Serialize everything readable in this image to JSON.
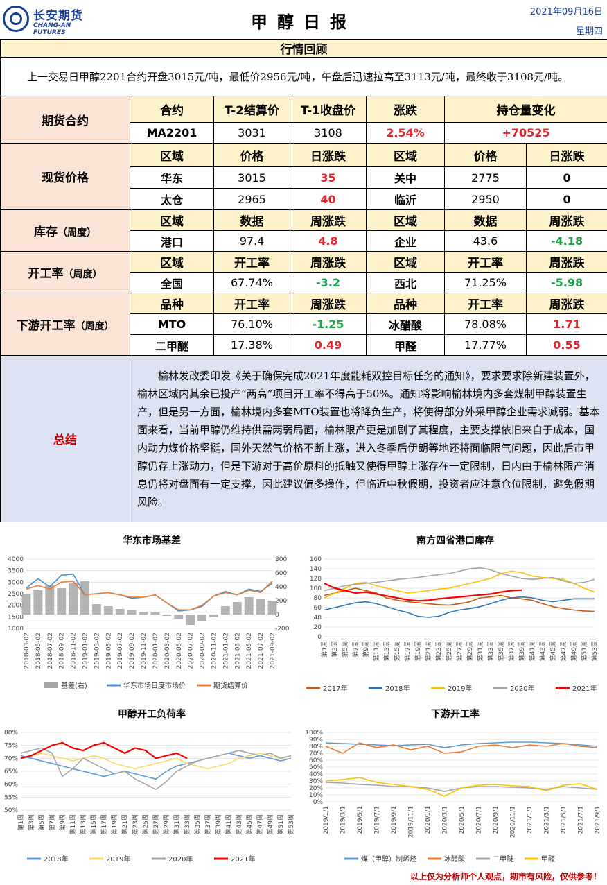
{
  "header": {
    "logo_cn": "长安期货",
    "logo_en": "CHANG-AN FUTURES",
    "title": "甲醇日报",
    "date": "2021年09月16日",
    "weekday": "星期四"
  },
  "review": {
    "heading": "行情回顾",
    "text": "上一交易日甲醇2201合约开盘3015元/吨，最低价2956元/吨，午盘后迅速拉高至3113元/吨，最终收于3108元/吨。"
  },
  "futures": {
    "label": "期货合约",
    "headers": [
      "合约",
      "T-2结算价",
      "T-1收盘价",
      "涨跌",
      "持仓量变化"
    ],
    "row": [
      "MA2201",
      "3031",
      "3108",
      "2.54%",
      "+70525"
    ]
  },
  "spot": {
    "label": "现货价格",
    "headers": [
      "区域",
      "价格",
      "日涨跌",
      "区域",
      "价格",
      "日涨跌"
    ],
    "rows": [
      [
        "华东",
        "3015",
        "35",
        "关中",
        "2775",
        "0"
      ],
      [
        "太仓",
        "2965",
        "40",
        "临沂",
        "2950",
        "0"
      ]
    ]
  },
  "inventory": {
    "label": "库存",
    "sub": "（周度）",
    "headers": [
      "区域",
      "数据",
      "周涨跌",
      "区域",
      "数据",
      "周涨跌"
    ],
    "row": [
      "港口",
      "97.4",
      "4.8",
      "企业",
      "43.6",
      "-4.18"
    ]
  },
  "operating": {
    "label": "开工率",
    "sub": "（周度）",
    "headers": [
      "区域",
      "开工率",
      "周涨跌",
      "区域",
      "开工率",
      "周涨跌"
    ],
    "row": [
      "全国",
      "67.74%",
      "-3.2",
      "西北",
      "71.25%",
      "-5.98"
    ]
  },
  "downstream": {
    "label": "下游开工率",
    "sub": "（周度）",
    "headers": [
      "品种",
      "开工率",
      "周涨跌",
      "品种",
      "开工率",
      "周涨跌"
    ],
    "rows": [
      [
        "MTO",
        "76.10%",
        "-1.25",
        "冰醋酸",
        "78.08%",
        "1.71"
      ],
      [
        "二甲醚",
        "17.38%",
        "0.49",
        "甲醛",
        "17.77%",
        "0.55"
      ]
    ]
  },
  "summary": {
    "label": "总结",
    "text": "榆林发改委印发《关于确保完成2021年度能耗双控目标任务的通知》，要求要求除新建装置外，榆林区域内其余已投产“两高”项目开工率不得高于50%。通知将影响榆林境内多套煤制甲醇装置生产，但是另一方面，榆林境内多套MTO装置也将降负生产，将使得部分外采甲醇企业需求减弱。基本面来看，当前甲醇仍维持供需两弱局面，榆林限产更是加剧了其程度，主要支撑依旧来自于成本，国内动力煤价格坚挺，国外天然气价格不断上涨，进入冬季后伊朗等地还将面临限气问题，因此后市甲醇仍存上涨动力，但是下游对于高价原料的抵触又使得甲醇上涨存在一定限制，日内由于榆林限产消息仍将对盘面有一定支撑，因此建议偏多操作，但临近中秋假期，投资者应注意仓位限制，避免假期风险。"
  },
  "chart_data": [
    {
      "type": "line",
      "title": "华东市场基差",
      "x": [
        "2018-03-02",
        "2018-05-02",
        "2018-07-02",
        "2018-09-02",
        "2018-11-02",
        "2019-01-02",
        "2019-03-02",
        "2019-05-02",
        "2019-07-02",
        "2019-09-02",
        "2019-11-02",
        "2020-01-02",
        "2020-03-02",
        "2020-05-02",
        "2020-07-02",
        "2020-09-02",
        "2020-11-02",
        "2021-01-02",
        "2021-03-02",
        "2021-05-02",
        "2021-07-02",
        "2021-09-02"
      ],
      "ylim": [
        1000,
        4000
      ],
      "y2lim": [
        -200,
        800
      ],
      "yticks": [
        "4000",
        "3500",
        "3000",
        "2500",
        "2000",
        "1500",
        "1000"
      ],
      "y2ticks": [
        "800",
        "600",
        "400",
        "200",
        "0",
        "-200"
      ],
      "series": [
        {
          "name": "基差(右)",
          "color": "#a6a6a6",
          "axis": "right",
          "values": [
            300,
            350,
            420,
            380,
            450,
            480,
            150,
            120,
            80,
            60,
            40,
            30,
            -20,
            -60,
            -150,
            -100,
            -40,
            120,
            180,
            250,
            220,
            200
          ]
        },
        {
          "name": "华东市场日度市场价",
          "color": "#4a8fd0",
          "values": [
            2750,
            3150,
            2800,
            3300,
            3350,
            2450,
            2500,
            2550,
            2450,
            2300,
            2350,
            2450,
            2100,
            1750,
            1800,
            1950,
            2400,
            2600,
            2450,
            2700,
            2600,
            2950
          ]
        },
        {
          "name": "期货结算价",
          "color": "#ed7d31",
          "values": [
            2700,
            2850,
            2700,
            3000,
            3050,
            2450,
            2500,
            2550,
            2450,
            2350,
            2350,
            2450,
            2100,
            1800,
            1800,
            2000,
            2400,
            2550,
            2450,
            2650,
            2550,
            3050
          ]
        }
      ]
    },
    {
      "type": "line",
      "title": "南方四省港口库存",
      "x": [
        "第1周",
        "第3周",
        "第5周",
        "第7周",
        "第9周",
        "第11周",
        "第13周",
        "第15周",
        "第17周",
        "第19周",
        "第21周",
        "第23周",
        "第25周",
        "第27周",
        "第29周",
        "第31周",
        "第33周",
        "第35周",
        "第37周",
        "第39周",
        "第41周",
        "第43周",
        "第45周",
        "第47周",
        "第49周",
        "第51周",
        "第53周"
      ],
      "ylim": [
        0,
        160
      ],
      "yticks": [
        "160",
        "140",
        "120",
        "100",
        "80",
        "60",
        "40",
        "20",
        "0"
      ],
      "series": [
        {
          "name": "2017年",
          "color": "#c55a11",
          "values": [
            85,
            90,
            95,
            100,
            95,
            90,
            80,
            75,
            72,
            70,
            68,
            66,
            65,
            68,
            72,
            80,
            82,
            85,
            80,
            78,
            75,
            68,
            62,
            58,
            55,
            53,
            52
          ]
        },
        {
          "name": "2018年",
          "color": "#2e75b6",
          "values": [
            55,
            60,
            65,
            70,
            72,
            68,
            62,
            55,
            50,
            42,
            40,
            42,
            50,
            55,
            58,
            62,
            68,
            75,
            80,
            82,
            80,
            75,
            72,
            75,
            78,
            78,
            78
          ]
        },
        {
          "name": "2019年",
          "color": "#ffc000",
          "values": [
            80,
            90,
            100,
            110,
            112,
            105,
            100,
            95,
            90,
            92,
            95,
            98,
            100,
            105,
            110,
            115,
            120,
            130,
            135,
            132,
            125,
            122,
            120,
            118,
            110,
            100,
            92
          ]
        },
        {
          "name": "2020年",
          "color": "#a5a5a5",
          "values": [
            95,
            100,
            105,
            108,
            110,
            112,
            115,
            118,
            120,
            122,
            125,
            128,
            130,
            135,
            140,
            142,
            138,
            130,
            125,
            120,
            118,
            120,
            122,
            115,
            110,
            112,
            118
          ]
        },
        {
          "name": "2021年",
          "color": "#ff0000",
          "values": [
            110,
            100,
            95,
            90,
            92,
            88,
            84,
            80,
            76,
            74,
            75,
            78,
            80,
            82,
            84,
            86,
            88,
            92,
            95,
            96,
            null,
            null,
            null,
            null,
            null,
            null,
            null
          ]
        }
      ]
    },
    {
      "type": "line",
      "title": "甲醇开工负荷率",
      "x": [
        "第1周",
        "第3周",
        "第5周",
        "第7周",
        "第9周",
        "第11周",
        "第13周",
        "第15周",
        "第17周",
        "第19周",
        "第21周",
        "第23周",
        "第25周",
        "第27周",
        "第29周",
        "第31周",
        "第33周",
        "第35周",
        "第37周",
        "第39周",
        "第41周",
        "第43周",
        "第45周",
        "第47周",
        "第49周",
        "第51周",
        "第53周"
      ],
      "ylim": [
        50,
        80
      ],
      "yticks": [
        "80%",
        "75%",
        "70%",
        "65%",
        "60%",
        "55%",
        "50%"
      ],
      "series": [
        {
          "name": "2018年",
          "color": "#5b9bd5",
          "values": [
            71,
            70,
            69,
            68,
            67,
            66,
            65,
            64,
            63,
            64,
            65,
            64,
            63,
            62,
            65,
            67,
            68,
            69,
            70,
            71,
            72,
            71,
            70,
            71,
            70,
            69,
            70
          ]
        },
        {
          "name": "2019年",
          "color": "#ffd966",
          "values": [
            70,
            71,
            72,
            71,
            70,
            69,
            70,
            71,
            70,
            68,
            67,
            66,
            67,
            68,
            69,
            70,
            68,
            67,
            66,
            67,
            68,
            70,
            71,
            72,
            71,
            70,
            71
          ]
        },
        {
          "name": "2020年",
          "color": "#a5a5a5",
          "values": [
            72,
            73,
            74,
            72,
            63,
            66,
            70,
            68,
            66,
            64,
            65,
            62,
            60,
            58,
            61,
            65,
            67,
            69,
            70,
            71,
            72,
            73,
            72,
            71,
            72,
            70,
            71
          ]
        },
        {
          "name": "2021年",
          "color": "#ff0000",
          "values": [
            70,
            71,
            73,
            75,
            76,
            74,
            73,
            75,
            76,
            74,
            72,
            74,
            73,
            70,
            71,
            72,
            70,
            null,
            null,
            null,
            null,
            null,
            null,
            null,
            null,
            null,
            null
          ]
        }
      ]
    },
    {
      "type": "line",
      "title": "下游开工率",
      "x": [
        "2019/1/1",
        "2019/3/1",
        "2019/5/1",
        "2019/7/1",
        "2019/9/1",
        "2019/11/1",
        "2020/1/1",
        "2020/3/1",
        "2020/5/1",
        "2020/7/1",
        "2020/9/1",
        "2020/11/1",
        "2021/1/1",
        "2021/3/1",
        "2021/5/1",
        "2021/7/1",
        "2021/9/1"
      ],
      "ylim": [
        0,
        100
      ],
      "yticks": [
        "100%",
        "90%",
        "80%",
        "70%",
        "60%",
        "50%",
        "40%",
        "30%",
        "20%",
        "10%",
        "0%"
      ],
      "series": [
        {
          "name": "煤（甲醇）制烯烃",
          "color": "#5b9bd5",
          "values": [
            85,
            84,
            83,
            82,
            81,
            82,
            83,
            78,
            82,
            84,
            85,
            86,
            86,
            85,
            84,
            82,
            80
          ]
        },
        {
          "name": "冰醋酸",
          "color": "#ed7d31",
          "values": [
            80,
            70,
            85,
            78,
            82,
            75,
            80,
            70,
            72,
            80,
            82,
            78,
            82,
            80,
            84,
            80,
            78
          ]
        },
        {
          "name": "二甲醚",
          "color": "#a5a5a5",
          "values": [
            28,
            27,
            25,
            24,
            22,
            22,
            20,
            15,
            20,
            22,
            22,
            21,
            20,
            18,
            22,
            20,
            18
          ]
        },
        {
          "name": "甲醛",
          "color": "#ffc000",
          "values": [
            30,
            32,
            35,
            28,
            25,
            22,
            18,
            8,
            20,
            24,
            25,
            23,
            22,
            16,
            24,
            26,
            18
          ]
        }
      ]
    }
  ],
  "footer": "以上仅为分析师个人观点，期市有风险，仅供参考！"
}
